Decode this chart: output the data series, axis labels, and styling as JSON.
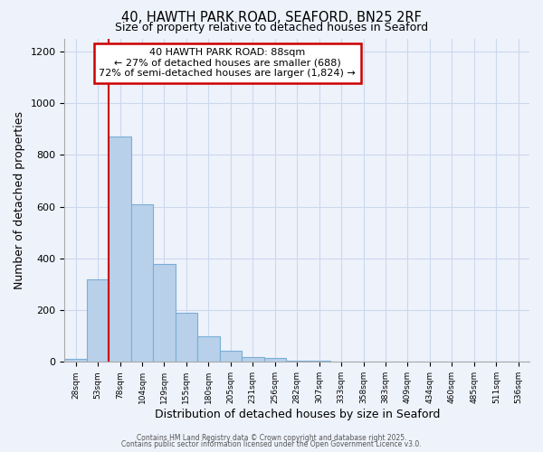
{
  "title": "40, HAWTH PARK ROAD, SEAFORD, BN25 2RF",
  "subtitle": "Size of property relative to detached houses in Seaford",
  "xlabel": "Distribution of detached houses by size in Seaford",
  "ylabel": "Number of detached properties",
  "bar_values": [
    10,
    320,
    870,
    610,
    380,
    190,
    100,
    42,
    20,
    15,
    5,
    5,
    2,
    0,
    0,
    0,
    0,
    0,
    0,
    0,
    0
  ],
  "bin_labels": [
    "28sqm",
    "53sqm",
    "78sqm",
    "104sqm",
    "129sqm",
    "155sqm",
    "180sqm",
    "205sqm",
    "231sqm",
    "256sqm",
    "282sqm",
    "307sqm",
    "333sqm",
    "358sqm",
    "383sqm",
    "409sqm",
    "434sqm",
    "460sqm",
    "485sqm",
    "511sqm",
    "536sqm"
  ],
  "bar_color": "#b8d0ea",
  "bar_edge_color": "#7aaed6",
  "red_line_index": 2.5,
  "ylim": [
    0,
    1250
  ],
  "yticks": [
    0,
    200,
    400,
    600,
    800,
    1000,
    1200
  ],
  "annotation_title": "40 HAWTH PARK ROAD: 88sqm",
  "annotation_line1": "← 27% of detached houses are smaller (688)",
  "annotation_line2": "72% of semi-detached houses are larger (1,824) →",
  "box_facecolor": "#ffffff",
  "box_edgecolor": "#cc0000",
  "footer1": "Contains HM Land Registry data © Crown copyright and database right 2025.",
  "footer2": "Contains public sector information licensed under the Open Government Licence v3.0.",
  "background_color": "#eef2fb",
  "grid_color": "#ccd8ee"
}
